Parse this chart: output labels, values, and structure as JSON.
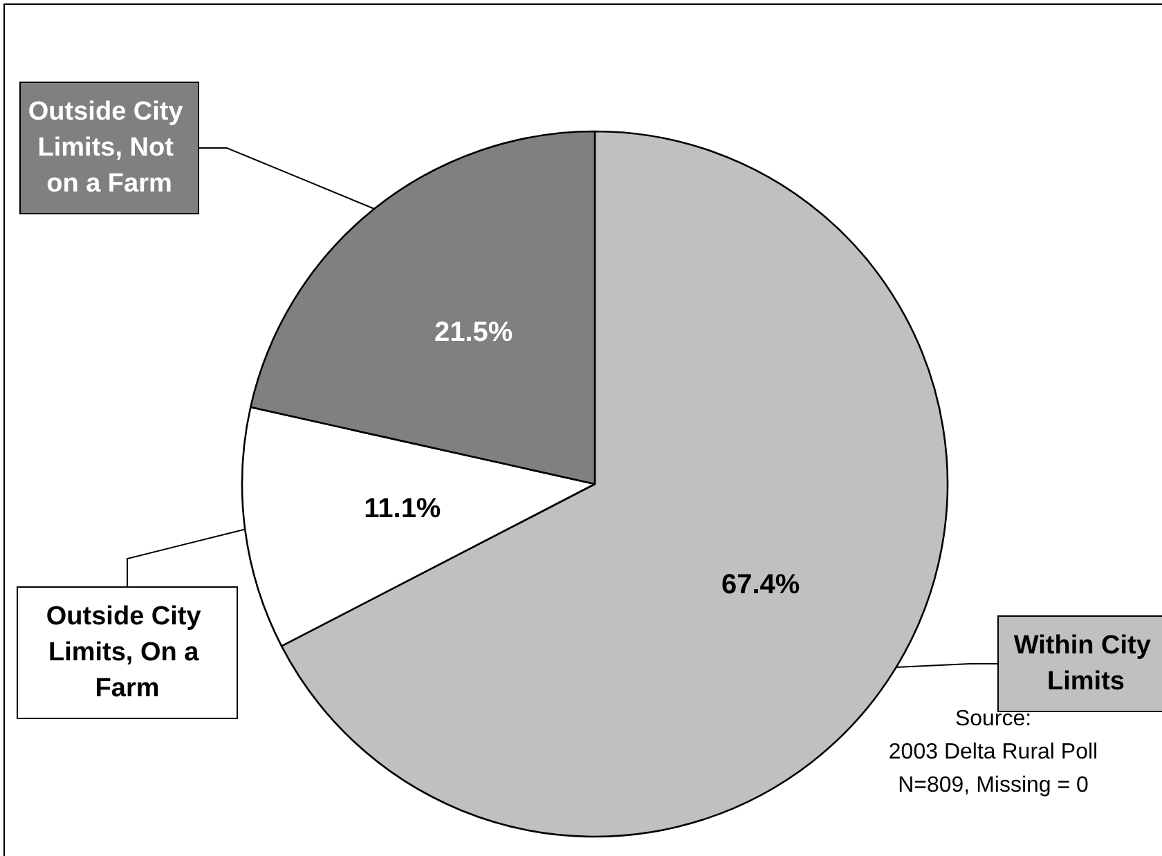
{
  "chart_data": {
    "type": "pie",
    "categories": [
      "Within City Limits",
      "Outside City Limits, On a Farm",
      "Outside City Limits, Not on a Farm"
    ],
    "values": [
      67.4,
      11.1,
      21.5
    ],
    "colors": [
      "#c0c0c0",
      "#ffffff",
      "#808080"
    ],
    "value_labels": [
      "67.4%",
      "11.1%",
      "21.5%"
    ],
    "legend": false,
    "annotations": [
      "Source:",
      "2003 Delta Rural Poll",
      "N=809, Missing = 0"
    ]
  }
}
